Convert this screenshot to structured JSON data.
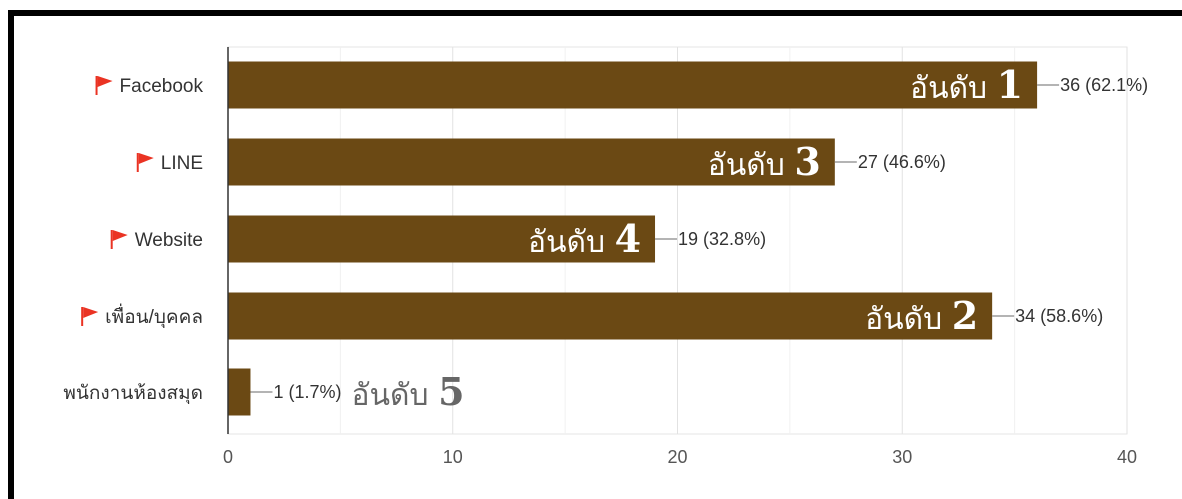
{
  "chart_data": {
    "type": "bar",
    "orientation": "horizontal",
    "categories": [
      "Facebook",
      "LINE",
      "Website",
      "เพื่อน/บุคคล",
      "พนักงานห้องสมุด"
    ],
    "values": [
      36,
      27,
      19,
      34,
      1
    ],
    "value_labels": [
      "36 (62.1%)",
      "27 (46.6%)",
      "19 (32.8%)",
      "34 (58.6%)",
      "1 (1.7%)"
    ],
    "flagged": [
      true,
      true,
      true,
      true,
      false
    ],
    "rank_labels": [
      {
        "word": "อันดับ",
        "num": "1"
      },
      {
        "word": "อันดับ",
        "num": "3"
      },
      {
        "word": "อันดับ",
        "num": "4"
      },
      {
        "word": "อันดับ",
        "num": "2"
      },
      {
        "word": "อันดับ",
        "num": "5"
      }
    ],
    "xlim": [
      0,
      40
    ],
    "xticks": [
      0,
      10,
      20,
      30,
      40
    ],
    "grid": true,
    "bar_color": "#6b4914",
    "flag_color": "#ea3323",
    "rank_inside_color": "#ffffff",
    "rank_outside_color": "#666666"
  }
}
